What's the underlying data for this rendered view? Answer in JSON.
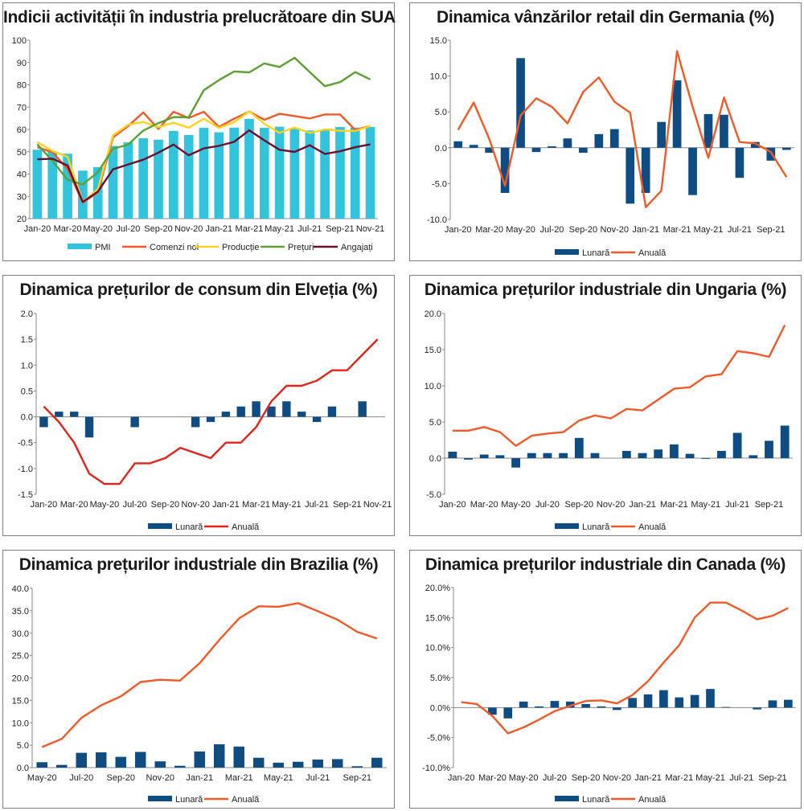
{
  "chart_data": [
    {
      "id": "c1",
      "type": "bar",
      "title": "Indicii activității în industria prelucrătoare din SUA",
      "categories": [
        "Jan-20",
        "Feb-20",
        "Mar-20",
        "Apr-20",
        "May-20",
        "Jun-20",
        "Jul-20",
        "Aug-20",
        "Sep-20",
        "Oct-20",
        "Nov-20",
        "Dec-20",
        "Jan-21",
        "Feb-21",
        "Mar-21",
        "Apr-21",
        "May-21",
        "Jun-21",
        "Jul-21",
        "Aug-21",
        "Sep-21",
        "Oct-21",
        "Nov-21"
      ],
      "tick_labels": [
        "Jan-20",
        "Mar-20",
        "May-20",
        "Jul-20",
        "Sep-20",
        "Nov-20",
        "Jan-21",
        "Mar-21",
        "May-21",
        "Jul-21",
        "Sep-21",
        "Nov-21"
      ],
      "ylim": [
        20,
        100
      ],
      "yticks": [
        20,
        30,
        40,
        50,
        60,
        70,
        80,
        90,
        100
      ],
      "ytick_labels": [
        "20",
        "30",
        "40",
        "50",
        "60",
        "70",
        "80",
        "90",
        "100"
      ],
      "bars": {
        "name": "PMI",
        "color": "#33c4dd",
        "values": [
          50.9,
          50.1,
          49.1,
          41.5,
          43.1,
          52.6,
          54.2,
          56.0,
          55.4,
          59.3,
          57.5,
          60.7,
          58.7,
          60.8,
          64.7,
          60.7,
          61.2,
          60.6,
          59.5,
          59.9,
          61.1,
          60.8,
          61.1
        ]
      },
      "series": [
        {
          "name": "Comenzi noi",
          "color": "#f05a28",
          "values": [
            52.0,
            49.8,
            42.2,
            27.1,
            31.8,
            56.4,
            61.5,
            67.6,
            60.2,
            67.9,
            65.1,
            67.9,
            61.1,
            64.8,
            68.0,
            64.3,
            67.0,
            66.0,
            64.9,
            66.7,
            66.7,
            59.8,
            61.5
          ]
        },
        {
          "name": "Producție",
          "color": "#ffd21f",
          "values": [
            54.3,
            50.3,
            47.7,
            27.5,
            33.2,
            57.3,
            62.1,
            63.3,
            61.0,
            63.0,
            60.8,
            64.8,
            60.7,
            63.2,
            68.1,
            62.5,
            58.5,
            60.8,
            58.4,
            60.0,
            59.4,
            59.3,
            61.5
          ]
        },
        {
          "name": "Prețuri",
          "color": "#5ca033",
          "values": [
            53.3,
            45.9,
            37.4,
            35.3,
            40.8,
            51.3,
            53.2,
            59.5,
            62.8,
            65.5,
            65.4,
            77.6,
            82.1,
            86.0,
            85.6,
            89.6,
            88.0,
            92.1,
            85.7,
            79.4,
            81.2,
            85.7,
            82.4
          ]
        },
        {
          "name": "Angajați",
          "color": "#6b0f2e",
          "values": [
            46.6,
            46.9,
            43.8,
            27.5,
            32.1,
            42.1,
            44.3,
            46.4,
            49.6,
            53.2,
            48.4,
            51.5,
            52.6,
            54.4,
            59.6,
            55.1,
            50.9,
            49.9,
            52.9,
            49.0,
            50.2,
            52.0,
            53.3
          ]
        }
      ],
      "legend": [
        "PMI",
        "Comenzi noi",
        "Producție",
        "Prețuri",
        "Angajați"
      ]
    },
    {
      "id": "c2",
      "type": "bar",
      "title": "Dinamica vânzărilor retail din Germania (%)",
      "categories": [
        "Jan-20",
        "Feb-20",
        "Mar-20",
        "Apr-20",
        "May-20",
        "Jun-20",
        "Jul-20",
        "Aug-20",
        "Sep-20",
        "Oct-20",
        "Nov-20",
        "Dec-20",
        "Jan-21",
        "Feb-21",
        "Mar-21",
        "Apr-21",
        "May-21",
        "Jun-21",
        "Jul-21",
        "Aug-21",
        "Sep-21",
        "Oct-21"
      ],
      "tick_labels": [
        "Jan-20",
        "Mar-20",
        "May-20",
        "Jul-20",
        "Sep-20",
        "Nov-20",
        "Jan-21",
        "Mar-21",
        "May-21",
        "Jul-21",
        "Sep-21"
      ],
      "ylim": [
        -10,
        15
      ],
      "yticks": [
        -10,
        -5,
        0,
        5,
        10,
        15
      ],
      "ytick_labels": [
        "-10.0",
        "-5.0",
        "0.0",
        "5.0",
        "10.0",
        "15.0"
      ],
      "bars": {
        "name": "Lunară",
        "color": "#0f4c81",
        "values": [
          0.9,
          0.4,
          -0.7,
          -6.3,
          12.5,
          -0.6,
          0.2,
          1.3,
          -0.7,
          1.9,
          2.6,
          -7.8,
          -6.3,
          3.6,
          9.4,
          -6.6,
          4.7,
          4.6,
          -4.2,
          0.8,
          -1.8,
          -0.3
        ]
      },
      "series": [
        {
          "name": "Anuală",
          "color": "#f05a28",
          "values": [
            2.5,
            6.3,
            1.2,
            -5.3,
            4.5,
            6.9,
            5.7,
            3.4,
            7.8,
            9.8,
            6.4,
            4.9,
            -8.3,
            -6.0,
            13.5,
            5.7,
            -1.4,
            7.0,
            0.8,
            0.6,
            -0.6,
            -4.1
          ]
        }
      ],
      "legend": [
        "Lunară",
        "Anuală"
      ]
    },
    {
      "id": "c3",
      "type": "bar",
      "title": "Dinamica prețurilor de consum din Elveția (%)",
      "categories": [
        "Jan-20",
        "Feb-20",
        "Mar-20",
        "Apr-20",
        "May-20",
        "Jun-20",
        "Jul-20",
        "Aug-20",
        "Sep-20",
        "Oct-20",
        "Nov-20",
        "Dec-20",
        "Jan-21",
        "Feb-21",
        "Mar-21",
        "Apr-21",
        "May-21",
        "Jun-21",
        "Jul-21",
        "Aug-21",
        "Sep-21",
        "Oct-21",
        "Nov-21"
      ],
      "tick_labels": [
        "Jan-20",
        "Mar-20",
        "May-20",
        "Jul-20",
        "Sep-20",
        "Nov-20",
        "Jan-21",
        "Mar-21",
        "May-21",
        "Jul-21",
        "Sep-21",
        "Nov-21"
      ],
      "ylim": [
        -1.5,
        2.0
      ],
      "yticks": [
        -1.5,
        -1.0,
        -0.5,
        0,
        0.5,
        1.0,
        1.5,
        2.0
      ],
      "ytick_labels": [
        "-1.5",
        "-1.0",
        "-0.5",
        "0.0",
        "0.5",
        "1.0",
        "1.5",
        "2.0"
      ],
      "bars": {
        "name": "Lunară",
        "color": "#0f4c81",
        "values": [
          -0.2,
          0.1,
          0.1,
          -0.4,
          0.0,
          0.0,
          -0.2,
          0.0,
          0.0,
          0.0,
          -0.2,
          -0.1,
          0.1,
          0.2,
          0.3,
          0.2,
          0.3,
          0.1,
          -0.1,
          0.2,
          0.0,
          0.3,
          0.0
        ]
      },
      "series": [
        {
          "name": "Anuală",
          "color": "#e2231a",
          "values": [
            0.2,
            -0.1,
            -0.5,
            -1.1,
            -1.3,
            -1.3,
            -0.9,
            -0.9,
            -0.8,
            -0.6,
            -0.7,
            -0.8,
            -0.5,
            -0.5,
            -0.2,
            0.3,
            0.6,
            0.6,
            0.7,
            0.9,
            0.9,
            1.2,
            1.5
          ]
        }
      ],
      "legend": [
        "Lunară",
        "Anuală"
      ]
    },
    {
      "id": "c4",
      "type": "bar",
      "title": "Dinamica prețurilor industriale din Ungaria (%)",
      "categories": [
        "Jan-20",
        "Feb-20",
        "Mar-20",
        "Apr-20",
        "May-20",
        "Jun-20",
        "Jul-20",
        "Aug-20",
        "Sep-20",
        "Oct-20",
        "Nov-20",
        "Dec-20",
        "Jan-21",
        "Feb-21",
        "Mar-21",
        "Apr-21",
        "May-21",
        "Jun-21",
        "Jul-21",
        "Aug-21",
        "Sep-21",
        "Oct-21"
      ],
      "tick_labels": [
        "Jan-20",
        "Mar-20",
        "May-20",
        "Jul-20",
        "Sep-20",
        "Nov-20",
        "Jan-21",
        "Mar-21",
        "May-21",
        "Jul-21",
        "Sep-21"
      ],
      "ylim": [
        -5,
        20
      ],
      "yticks": [
        -5,
        0,
        5,
        10,
        15,
        20
      ],
      "ytick_labels": [
        "-5.0",
        "0.0",
        "5.0",
        "10.0",
        "15.0",
        "20.0"
      ],
      "bars": {
        "name": "Lunară",
        "color": "#0f4c81",
        "values": [
          0.9,
          -0.2,
          0.5,
          0.4,
          -1.3,
          0.7,
          0.7,
          0.7,
          2.8,
          0.7,
          0.0,
          1.0,
          0.7,
          1.2,
          1.9,
          0.6,
          -0.1,
          1.0,
          3.5,
          0.4,
          2.4,
          4.5
        ]
      },
      "series": [
        {
          "name": "Anuală",
          "color": "#f05a28",
          "values": [
            3.8,
            3.8,
            4.3,
            3.6,
            1.7,
            3.1,
            3.4,
            3.6,
            5.2,
            5.9,
            5.5,
            6.8,
            6.6,
            8.1,
            9.6,
            9.8,
            11.3,
            11.6,
            14.8,
            14.5,
            14.0,
            18.4
          ]
        }
      ],
      "legend": [
        "Lunară",
        "Anuală"
      ]
    },
    {
      "id": "c5",
      "type": "bar",
      "title": "Dinamica prețurilor industriale din Brazilia (%)",
      "categories": [
        "May-20",
        "Jun-20",
        "Jul-20",
        "Aug-20",
        "Sep-20",
        "Oct-20",
        "Nov-20",
        "Dec-20",
        "Jan-21",
        "Feb-21",
        "Mar-21",
        "Apr-21",
        "May-21",
        "Jun-21",
        "Jul-21",
        "Aug-21",
        "Sep-21",
        "Oct-21"
      ],
      "tick_labels": [
        "May-20",
        "Jul-20",
        "Sep-20",
        "Nov-20",
        "Jan-21",
        "Mar-21",
        "May-21",
        "Jul-21",
        "Sep-21"
      ],
      "ylim": [
        0,
        40
      ],
      "yticks": [
        0,
        5,
        10,
        15,
        20,
        25,
        30,
        35,
        40
      ],
      "ytick_labels": [
        "0.0",
        "5.0",
        "10.0",
        "15.0",
        "20.0",
        "25.0",
        "30.0",
        "35.0",
        "40.0"
      ],
      "bars": {
        "name": "Lunară",
        "color": "#0f4c81",
        "values": [
          1.2,
          0.6,
          3.3,
          3.4,
          2.4,
          3.5,
          1.4,
          0.4,
          3.6,
          5.2,
          4.7,
          2.2,
          1.1,
          1.3,
          1.8,
          1.9,
          0.3,
          2.2
        ]
      },
      "series": [
        {
          "name": "Anuală",
          "color": "#f05a28",
          "values": [
            4.6,
            6.4,
            11.1,
            13.9,
            15.9,
            19.1,
            19.6,
            19.4,
            23.3,
            28.5,
            33.3,
            36.0,
            35.9,
            36.7,
            34.9,
            33.0,
            30.3,
            28.8
          ]
        }
      ],
      "legend": [
        "Lunară",
        "Anuală"
      ]
    },
    {
      "id": "c6",
      "type": "bar",
      "title": "Dinamica prețurilor industriale din Canada (%)",
      "categories": [
        "Jan-20",
        "Feb-20",
        "Mar-20",
        "Apr-20",
        "May-20",
        "Jun-20",
        "Jul-20",
        "Aug-20",
        "Sep-20",
        "Oct-20",
        "Nov-20",
        "Dec-20",
        "Jan-21",
        "Feb-21",
        "Mar-21",
        "Apr-21",
        "May-21",
        "Jun-21",
        "Jul-21",
        "Aug-21",
        "Sep-21",
        "Oct-21"
      ],
      "tick_labels": [
        "Jan-20",
        "Mar-20",
        "May-20",
        "Jul-20",
        "Sep-20",
        "Nov-20",
        "Jan-21",
        "Mar-21",
        "May-21",
        "Jul-21",
        "Sep-21"
      ],
      "ylim": [
        -10,
        20
      ],
      "yticks": [
        -10,
        -5,
        0,
        5,
        10,
        15,
        20
      ],
      "ytick_labels": [
        "-10.0%",
        "-5.0%",
        "0.0%",
        "5.0%",
        "10.0%",
        "15.0%",
        "20.0%"
      ],
      "bars": {
        "name": "Lunară",
        "color": "#0f4c81",
        "values": [
          0.0,
          0.0,
          -1.2,
          -1.8,
          1.0,
          0.2,
          1.1,
          1.0,
          0.6,
          0.2,
          -0.4,
          1.6,
          2.2,
          2.9,
          1.7,
          2.1,
          3.1,
          0.1,
          0.0,
          -0.3,
          1.2,
          1.3
        ]
      },
      "series": [
        {
          "name": "Anuală",
          "color": "#f05a28",
          "values": [
            0.9,
            0.6,
            -1.4,
            -4.3,
            -3.3,
            -2.0,
            -0.6,
            0.3,
            1.1,
            1.2,
            0.7,
            2.1,
            4.4,
            7.5,
            10.4,
            15.0,
            17.5,
            17.5,
            16.2,
            14.7,
            15.3,
            16.6
          ]
        }
      ],
      "legend": [
        "Lunară",
        "Anuală"
      ]
    }
  ]
}
